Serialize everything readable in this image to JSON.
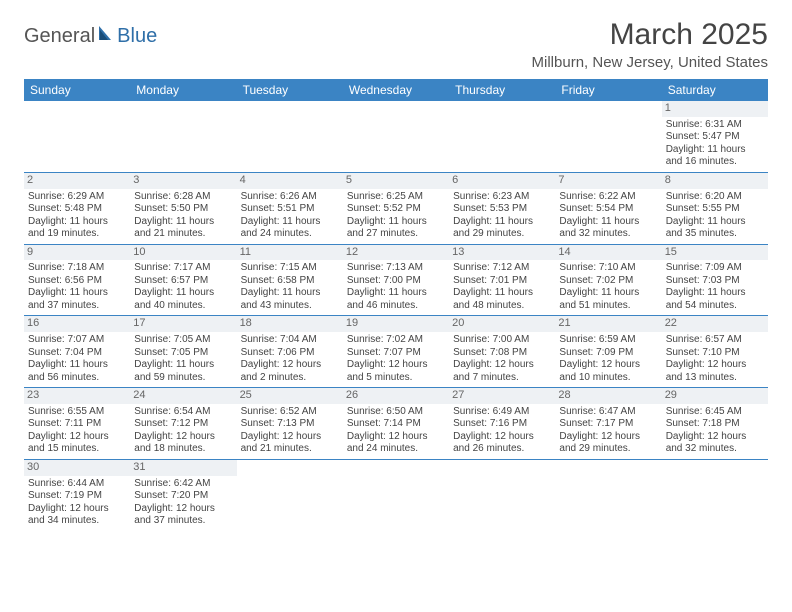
{
  "logo": {
    "text1": "General",
    "text2": "Blue"
  },
  "title": "March 2025",
  "location": "Millburn, New Jersey, United States",
  "weekdays": [
    "Sunday",
    "Monday",
    "Tuesday",
    "Wednesday",
    "Thursday",
    "Friday",
    "Saturday"
  ],
  "colors": {
    "header_bg": "#3b84c4",
    "header_text": "#ffffff",
    "border": "#3b84c4",
    "daynum_bg": "#eef1f4",
    "text": "#444444"
  },
  "weeks": [
    [
      null,
      null,
      null,
      null,
      null,
      null,
      {
        "n": "1",
        "sr": "Sunrise: 6:31 AM",
        "ss": "Sunset: 5:47 PM",
        "d1": "Daylight: 11 hours",
        "d2": "and 16 minutes."
      }
    ],
    [
      {
        "n": "2",
        "sr": "Sunrise: 6:29 AM",
        "ss": "Sunset: 5:48 PM",
        "d1": "Daylight: 11 hours",
        "d2": "and 19 minutes."
      },
      {
        "n": "3",
        "sr": "Sunrise: 6:28 AM",
        "ss": "Sunset: 5:50 PM",
        "d1": "Daylight: 11 hours",
        "d2": "and 21 minutes."
      },
      {
        "n": "4",
        "sr": "Sunrise: 6:26 AM",
        "ss": "Sunset: 5:51 PM",
        "d1": "Daylight: 11 hours",
        "d2": "and 24 minutes."
      },
      {
        "n": "5",
        "sr": "Sunrise: 6:25 AM",
        "ss": "Sunset: 5:52 PM",
        "d1": "Daylight: 11 hours",
        "d2": "and 27 minutes."
      },
      {
        "n": "6",
        "sr": "Sunrise: 6:23 AM",
        "ss": "Sunset: 5:53 PM",
        "d1": "Daylight: 11 hours",
        "d2": "and 29 minutes."
      },
      {
        "n": "7",
        "sr": "Sunrise: 6:22 AM",
        "ss": "Sunset: 5:54 PM",
        "d1": "Daylight: 11 hours",
        "d2": "and 32 minutes."
      },
      {
        "n": "8",
        "sr": "Sunrise: 6:20 AM",
        "ss": "Sunset: 5:55 PM",
        "d1": "Daylight: 11 hours",
        "d2": "and 35 minutes."
      }
    ],
    [
      {
        "n": "9",
        "sr": "Sunrise: 7:18 AM",
        "ss": "Sunset: 6:56 PM",
        "d1": "Daylight: 11 hours",
        "d2": "and 37 minutes."
      },
      {
        "n": "10",
        "sr": "Sunrise: 7:17 AM",
        "ss": "Sunset: 6:57 PM",
        "d1": "Daylight: 11 hours",
        "d2": "and 40 minutes."
      },
      {
        "n": "11",
        "sr": "Sunrise: 7:15 AM",
        "ss": "Sunset: 6:58 PM",
        "d1": "Daylight: 11 hours",
        "d2": "and 43 minutes."
      },
      {
        "n": "12",
        "sr": "Sunrise: 7:13 AM",
        "ss": "Sunset: 7:00 PM",
        "d1": "Daylight: 11 hours",
        "d2": "and 46 minutes."
      },
      {
        "n": "13",
        "sr": "Sunrise: 7:12 AM",
        "ss": "Sunset: 7:01 PM",
        "d1": "Daylight: 11 hours",
        "d2": "and 48 minutes."
      },
      {
        "n": "14",
        "sr": "Sunrise: 7:10 AM",
        "ss": "Sunset: 7:02 PM",
        "d1": "Daylight: 11 hours",
        "d2": "and 51 minutes."
      },
      {
        "n": "15",
        "sr": "Sunrise: 7:09 AM",
        "ss": "Sunset: 7:03 PM",
        "d1": "Daylight: 11 hours",
        "d2": "and 54 minutes."
      }
    ],
    [
      {
        "n": "16",
        "sr": "Sunrise: 7:07 AM",
        "ss": "Sunset: 7:04 PM",
        "d1": "Daylight: 11 hours",
        "d2": "and 56 minutes."
      },
      {
        "n": "17",
        "sr": "Sunrise: 7:05 AM",
        "ss": "Sunset: 7:05 PM",
        "d1": "Daylight: 11 hours",
        "d2": "and 59 minutes."
      },
      {
        "n": "18",
        "sr": "Sunrise: 7:04 AM",
        "ss": "Sunset: 7:06 PM",
        "d1": "Daylight: 12 hours",
        "d2": "and 2 minutes."
      },
      {
        "n": "19",
        "sr": "Sunrise: 7:02 AM",
        "ss": "Sunset: 7:07 PM",
        "d1": "Daylight: 12 hours",
        "d2": "and 5 minutes."
      },
      {
        "n": "20",
        "sr": "Sunrise: 7:00 AM",
        "ss": "Sunset: 7:08 PM",
        "d1": "Daylight: 12 hours",
        "d2": "and 7 minutes."
      },
      {
        "n": "21",
        "sr": "Sunrise: 6:59 AM",
        "ss": "Sunset: 7:09 PM",
        "d1": "Daylight: 12 hours",
        "d2": "and 10 minutes."
      },
      {
        "n": "22",
        "sr": "Sunrise: 6:57 AM",
        "ss": "Sunset: 7:10 PM",
        "d1": "Daylight: 12 hours",
        "d2": "and 13 minutes."
      }
    ],
    [
      {
        "n": "23",
        "sr": "Sunrise: 6:55 AM",
        "ss": "Sunset: 7:11 PM",
        "d1": "Daylight: 12 hours",
        "d2": "and 15 minutes."
      },
      {
        "n": "24",
        "sr": "Sunrise: 6:54 AM",
        "ss": "Sunset: 7:12 PM",
        "d1": "Daylight: 12 hours",
        "d2": "and 18 minutes."
      },
      {
        "n": "25",
        "sr": "Sunrise: 6:52 AM",
        "ss": "Sunset: 7:13 PM",
        "d1": "Daylight: 12 hours",
        "d2": "and 21 minutes."
      },
      {
        "n": "26",
        "sr": "Sunrise: 6:50 AM",
        "ss": "Sunset: 7:14 PM",
        "d1": "Daylight: 12 hours",
        "d2": "and 24 minutes."
      },
      {
        "n": "27",
        "sr": "Sunrise: 6:49 AM",
        "ss": "Sunset: 7:16 PM",
        "d1": "Daylight: 12 hours",
        "d2": "and 26 minutes."
      },
      {
        "n": "28",
        "sr": "Sunrise: 6:47 AM",
        "ss": "Sunset: 7:17 PM",
        "d1": "Daylight: 12 hours",
        "d2": "and 29 minutes."
      },
      {
        "n": "29",
        "sr": "Sunrise: 6:45 AM",
        "ss": "Sunset: 7:18 PM",
        "d1": "Daylight: 12 hours",
        "d2": "and 32 minutes."
      }
    ],
    [
      {
        "n": "30",
        "sr": "Sunrise: 6:44 AM",
        "ss": "Sunset: 7:19 PM",
        "d1": "Daylight: 12 hours",
        "d2": "and 34 minutes."
      },
      {
        "n": "31",
        "sr": "Sunrise: 6:42 AM",
        "ss": "Sunset: 7:20 PM",
        "d1": "Daylight: 12 hours",
        "d2": "and 37 minutes."
      },
      null,
      null,
      null,
      null,
      null
    ]
  ]
}
